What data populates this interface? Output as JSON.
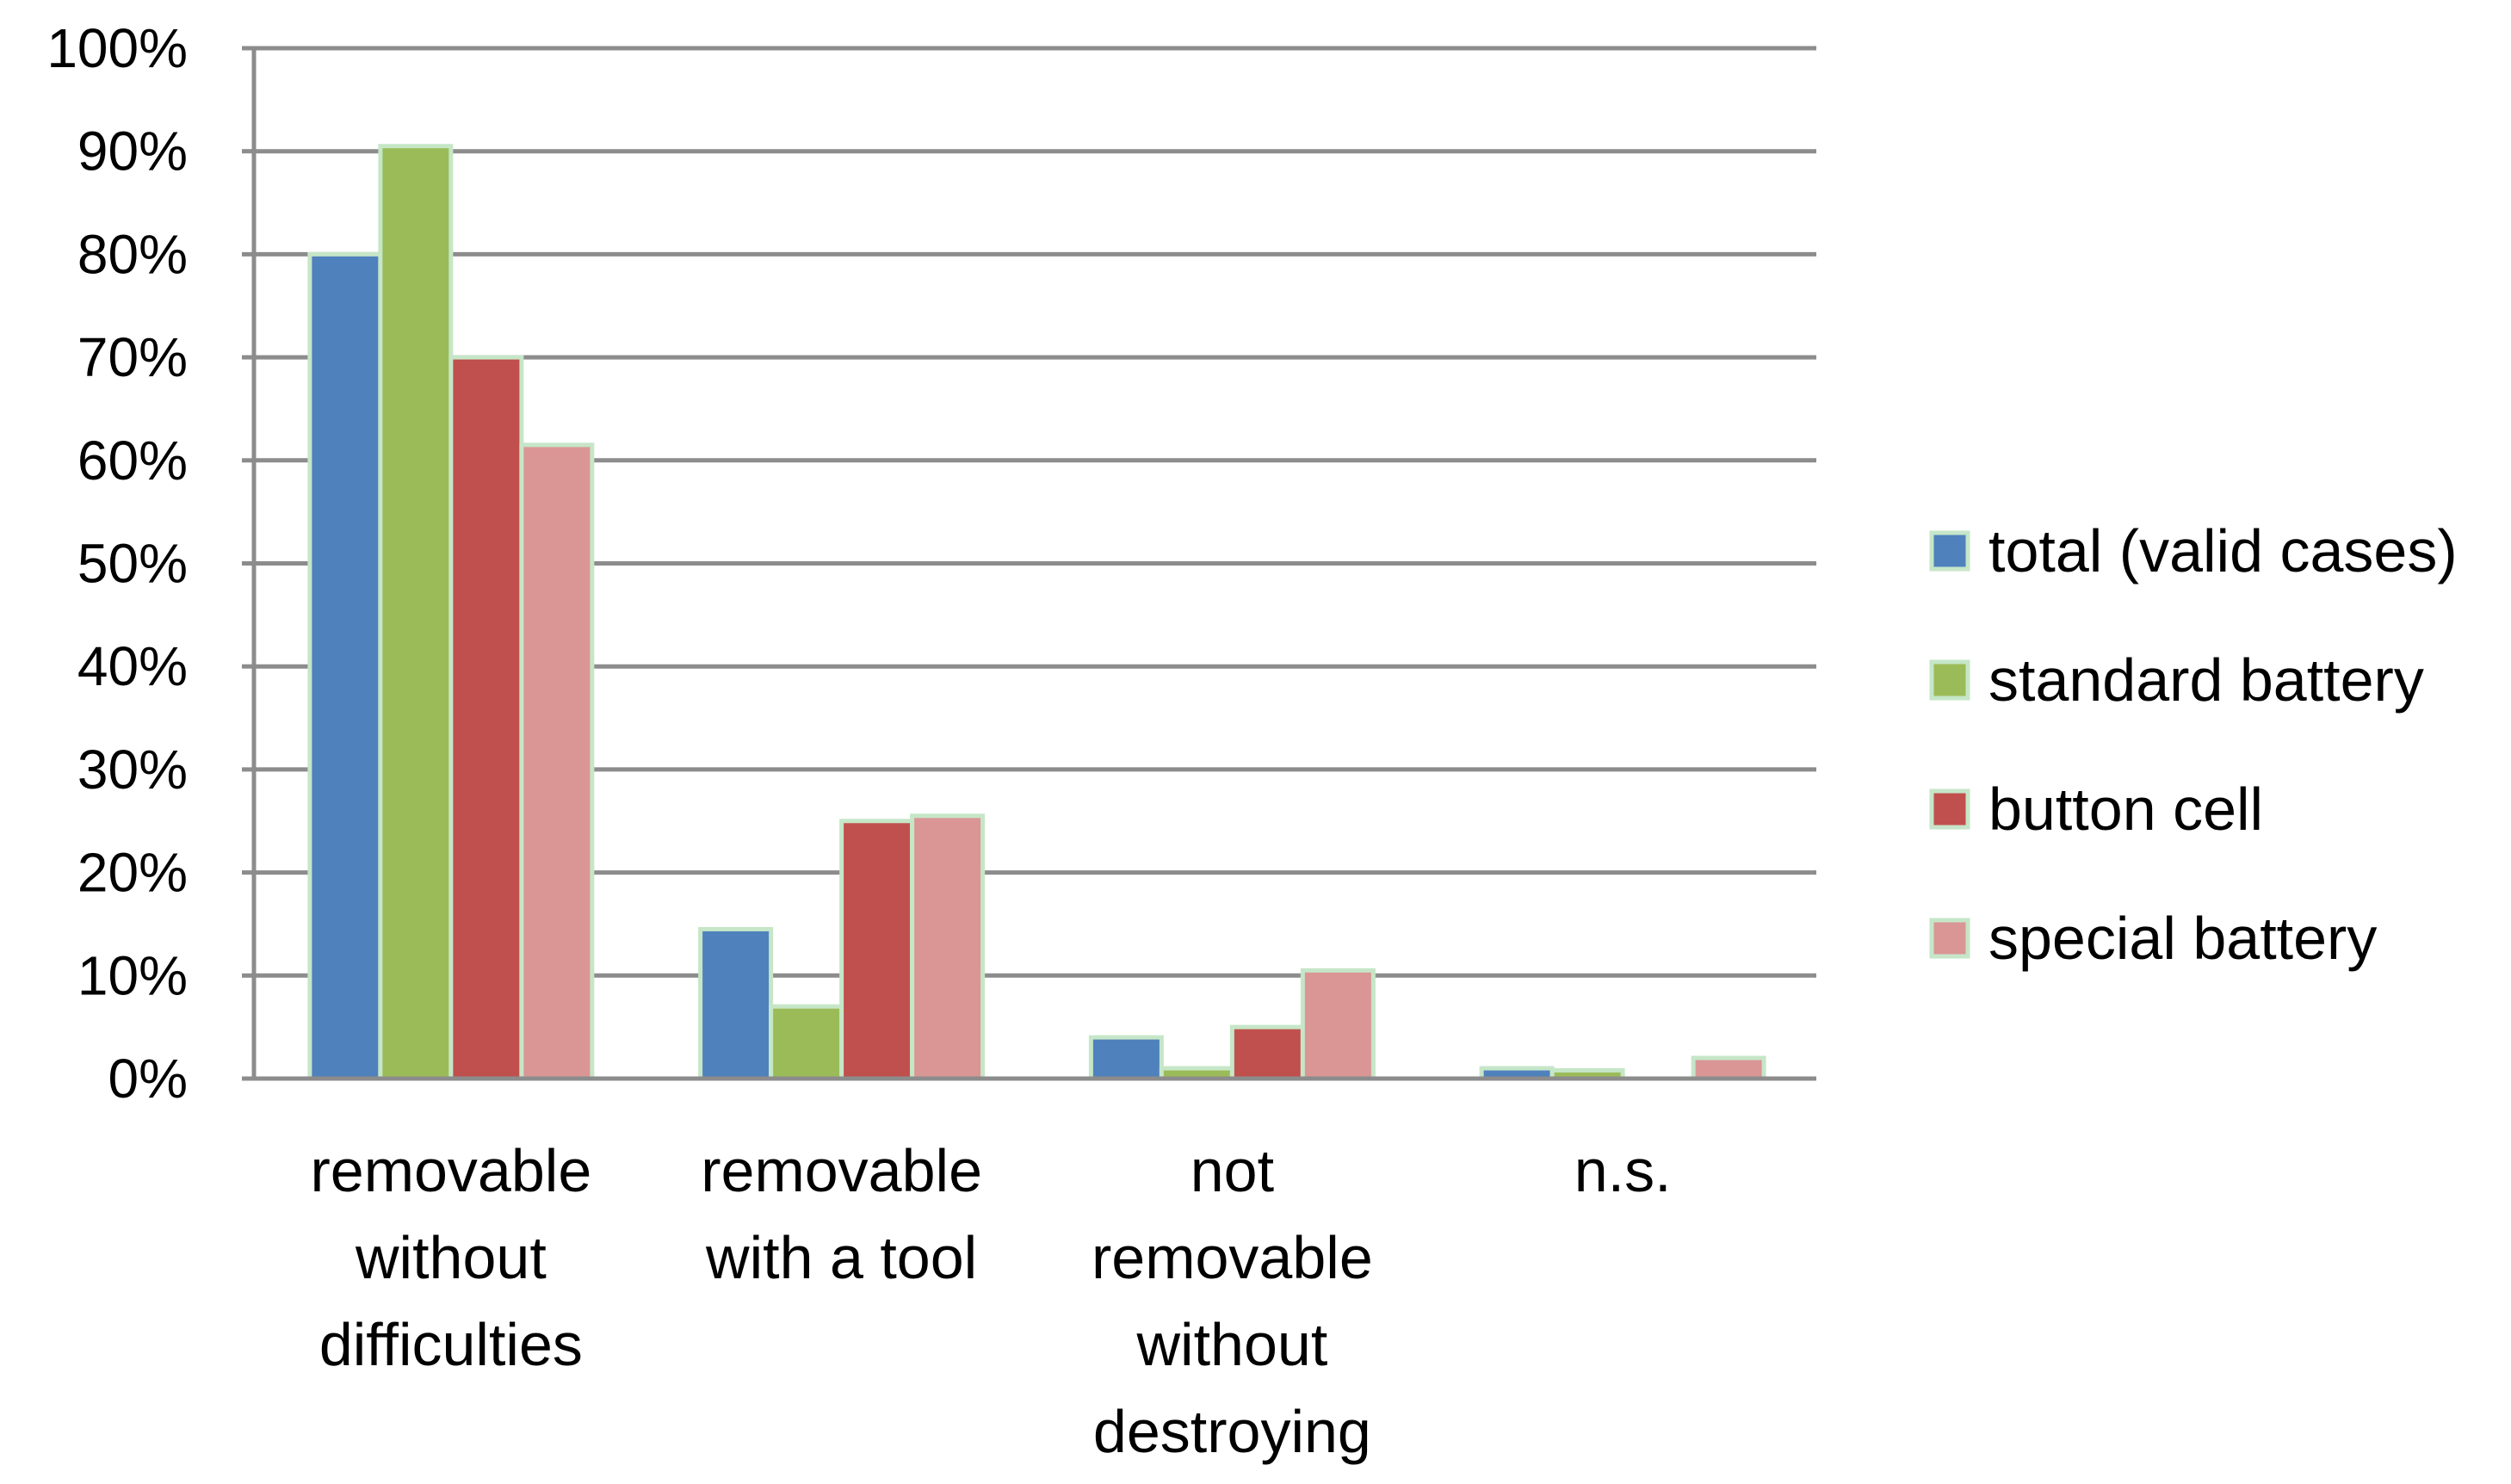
{
  "chart_data": {
    "type": "bar",
    "title": "",
    "xlabel": "",
    "ylabel": "",
    "ylim": [
      0,
      100
    ],
    "y_ticks": [
      "0%",
      "10%",
      "20%",
      "30%",
      "40%",
      "50%",
      "60%",
      "70%",
      "80%",
      "90%",
      "100%"
    ],
    "y_tick_values": [
      0,
      10,
      20,
      30,
      40,
      50,
      60,
      70,
      80,
      90,
      100
    ],
    "grid": true,
    "legend_position": "right",
    "categories": [
      [
        "removable",
        "without",
        "difficulties"
      ],
      [
        "removable",
        "with a tool"
      ],
      [
        "not",
        "removable",
        "without",
        "destroying"
      ],
      [
        "n.s."
      ]
    ],
    "series": [
      {
        "name": "total (valid cases)",
        "color": "#4f81bd",
        "values": [
          80,
          14.5,
          4,
          1
        ]
      },
      {
        "name": "standard battery",
        "color": "#9bbb59",
        "values": [
          90.5,
          7,
          1,
          0.8
        ]
      },
      {
        "name": "button cell",
        "color": "#c0504d",
        "values": [
          70,
          25,
          5,
          0
        ]
      },
      {
        "name": "special battery",
        "color": "#d99694",
        "values": [
          61.5,
          25.5,
          10.5,
          2
        ]
      }
    ]
  }
}
